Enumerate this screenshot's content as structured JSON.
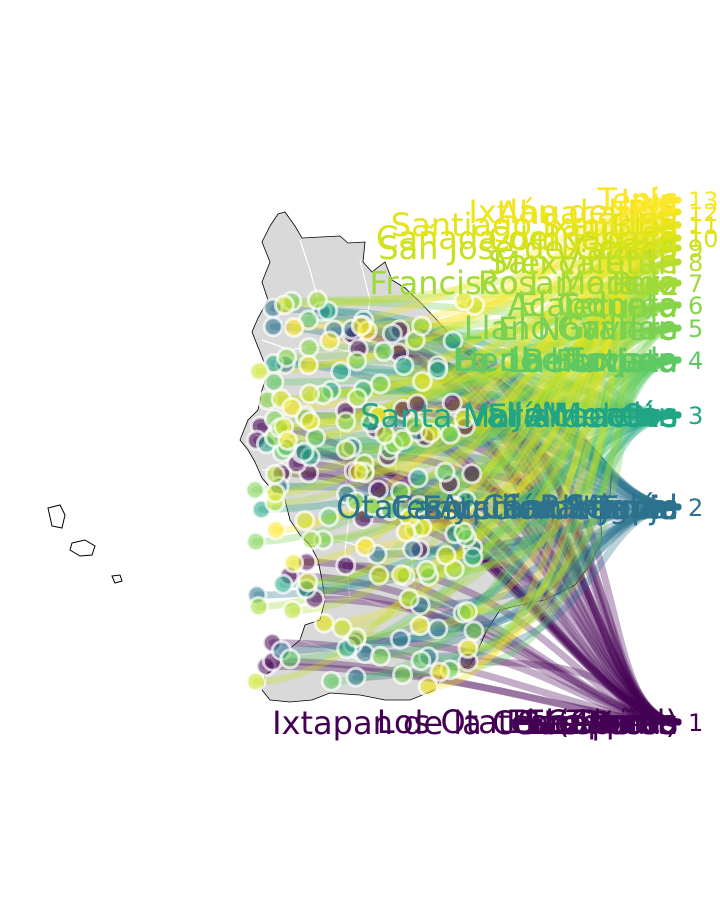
{
  "chart_data": {
    "type": "scatter",
    "title": "",
    "xlabel": "",
    "ylabel": "",
    "grid": false,
    "legend": "none",
    "background_map": "grey municipal map of Nayarit with white boundaries",
    "palette": [
      "#440154",
      "#31688e",
      "#21918c",
      "#35b779",
      "#90d743",
      "#fde725"
    ],
    "ranks": [
      1,
      2,
      3,
      4,
      5,
      6,
      7,
      8,
      9,
      10,
      11,
      12,
      13
    ],
    "groups": [
      {
        "rank": 1,
        "color": "#440154",
        "labels": [
          "Paredones",
          "La Presa",
          "El Zapote",
          "San Pedro",
          "Los Otates (Corral)",
          "Las Varas",
          "El Capomo",
          "Ixtapan de la Concepción",
          "La Peñita"
        ]
      },
      {
        "rank": 2,
        "color": "#2c728e",
        "labels": [
          "San Miguel",
          "Estación Nanchi",
          "Otates y Cantarranas",
          "Camichín de Jauja",
          "Pantanal",
          "Tepic",
          "Aquiles Serdán"
        ]
      },
      {
        "rank": 3,
        "color": "#21a585",
        "labels": [
          "Valle Morelos",
          "El Ahuacate",
          "Jalcocotán",
          "Santa María del Oro",
          "Mecatán"
        ]
      },
      {
        "rank": 4,
        "color": "#5ec962",
        "labels": [
          "Heriberto Jara",
          "Bellavista",
          "Tuxpan",
          "La Fortuna",
          "Lo de Lamedo"
        ]
      },
      {
        "rank": 5,
        "color": "#7ad151",
        "labels": [
          "Gavilán",
          "El Novillero",
          "Llano Grande"
        ]
      },
      {
        "rank": 6,
        "color": "#86d549",
        "labels": [
          "Acaponeta",
          "Tecuala",
          "El Colomo"
        ]
      },
      {
        "rank": 7,
        "color": "#a0da39",
        "labels": [
          "Francisco I. Madero",
          "Ruiz",
          "Rosamorada"
        ]
      },
      {
        "rank": 8,
        "color": "#b5de2b",
        "labels": [
          "San Vicente",
          "Mexcaltitán"
        ]
      },
      {
        "rank": 9,
        "color": "#c8e020",
        "labels": [
          "San José de Gracia",
          "Xalisco"
        ]
      },
      {
        "rank": 10,
        "color": "#d8e219",
        "labels": [
          "Cañada del Tabaco",
          "Compostela"
        ]
      },
      {
        "rank": 11,
        "color": "#e5e419",
        "labels": [
          "Santiago Ixcuintla",
          "San Blas"
        ]
      },
      {
        "rank": 12,
        "color": "#f0e51d",
        "labels": [
          "Ixtlán del Río",
          "Ahuacatlán"
        ]
      },
      {
        "rank": 13,
        "color": "#fde725",
        "labels": [
          "Tepic",
          "Jala"
        ]
      }
    ]
  }
}
